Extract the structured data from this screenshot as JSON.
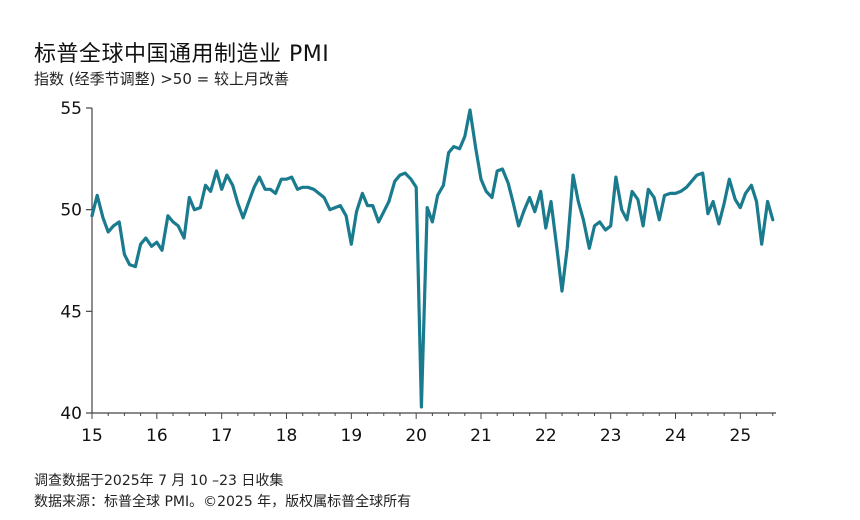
{
  "header": {
    "title": "标普全球中国通用制造业 PMI",
    "subtitle": "指数 (经季节调整) >50 = 较上月改善"
  },
  "footer": {
    "line1": "调查数据于2025年 7 月 10 –23 日收集",
    "line2": "数据来源：标普全球 PMI。©2025 年，版权属标普全球所有"
  },
  "colors": {
    "line": "#1a7a8e",
    "axis": "#444444"
  },
  "chart_data": {
    "type": "line",
    "title": "标普全球中国通用制造业 PMI",
    "subtitle": "指数 (经季节调整) >50 = 较上月改善",
    "xlabel": "",
    "ylabel": "",
    "ylim": [
      40,
      55
    ],
    "yticks": [
      40,
      45,
      50,
      55
    ],
    "xlim": [
      2015,
      2025.55
    ],
    "xticks": [
      2015,
      2016,
      2017,
      2018,
      2019,
      2020,
      2021,
      2022,
      2023,
      2024,
      2025
    ],
    "xtick_labels": [
      "15",
      "16",
      "17",
      "18",
      "19",
      "20",
      "21",
      "22",
      "23",
      "24",
      "25"
    ],
    "grid": false,
    "legend": "none",
    "series": [
      {
        "x": [
          2015.0,
          2015.08,
          2015.17,
          2015.25,
          2015.33,
          2015.42,
          2015.5,
          2015.58,
          2015.67,
          2015.75,
          2015.83,
          2015.92,
          2016.0,
          2016.08,
          2016.17,
          2016.25,
          2016.33,
          2016.42,
          2016.5,
          2016.58,
          2016.67,
          2016.75,
          2016.83,
          2016.92,
          2017.0,
          2017.08,
          2017.17,
          2017.25,
          2017.33,
          2017.42,
          2017.5,
          2017.58,
          2017.67,
          2017.75,
          2017.83,
          2017.92,
          2018.0,
          2018.08,
          2018.17,
          2018.25,
          2018.33,
          2018.42,
          2018.5,
          2018.58,
          2018.67,
          2018.75,
          2018.83,
          2018.92,
          2019.0,
          2019.08,
          2019.17,
          2019.25,
          2019.33,
          2019.42,
          2019.5,
          2019.58,
          2019.67,
          2019.75,
          2019.83,
          2019.92,
          2020.0,
          2020.08,
          2020.17,
          2020.25,
          2020.33,
          2020.42,
          2020.5,
          2020.58,
          2020.67,
          2020.75,
          2020.83,
          2020.92,
          2021.0,
          2021.08,
          2021.17,
          2021.25,
          2021.33,
          2021.42,
          2021.5,
          2021.58,
          2021.67,
          2021.75,
          2021.83,
          2021.92,
          2022.0,
          2022.08,
          2022.17,
          2022.25,
          2022.33,
          2022.42,
          2022.5,
          2022.58,
          2022.67,
          2022.75,
          2022.83,
          2022.92,
          2023.0,
          2023.08,
          2023.17,
          2023.25,
          2023.33,
          2023.42,
          2023.5,
          2023.58,
          2023.67,
          2023.75,
          2023.83,
          2023.92,
          2024.0,
          2024.08,
          2024.17,
          2024.25,
          2024.33,
          2024.42,
          2024.5,
          2024.58,
          2024.67,
          2024.75,
          2024.83,
          2024.92,
          2025.0,
          2025.08,
          2025.17,
          2025.25,
          2025.33,
          2025.42,
          2025.5
        ],
        "y": [
          49.7,
          50.7,
          49.6,
          48.9,
          49.2,
          49.4,
          47.8,
          47.3,
          47.2,
          48.3,
          48.6,
          48.2,
          48.4,
          48.0,
          49.7,
          49.4,
          49.2,
          48.6,
          50.6,
          50.0,
          50.1,
          51.2,
          50.9,
          51.9,
          51.0,
          51.7,
          51.2,
          50.3,
          49.6,
          50.4,
          51.1,
          51.6,
          51.0,
          51.0,
          50.8,
          51.5,
          51.5,
          51.6,
          51.0,
          51.1,
          51.1,
          51.0,
          50.8,
          50.6,
          50.0,
          50.1,
          50.2,
          49.7,
          48.3,
          49.9,
          50.8,
          50.2,
          50.2,
          49.4,
          49.9,
          50.4,
          51.4,
          51.7,
          51.8,
          51.5,
          51.1,
          40.3,
          50.1,
          49.4,
          50.7,
          51.2,
          52.8,
          53.1,
          53.0,
          53.6,
          54.9,
          53.0,
          51.5,
          50.9,
          50.6,
          51.9,
          52.0,
          51.3,
          50.3,
          49.2,
          50.0,
          50.6,
          49.9,
          50.9,
          49.1,
          50.4,
          48.1,
          46.0,
          48.1,
          51.7,
          50.4,
          49.5,
          48.1,
          49.2,
          49.4,
          49.0,
          49.2,
          51.6,
          50.0,
          49.5,
          50.9,
          50.5,
          49.2,
          51.0,
          50.6,
          49.5,
          50.7,
          50.8,
          50.8,
          50.9,
          51.1,
          51.4,
          51.7,
          51.8,
          49.8,
          50.4,
          49.3,
          50.3,
          51.5,
          50.5,
          50.1,
          50.8,
          51.2,
          50.4,
          48.3,
          50.4,
          49.5
        ]
      }
    ]
  }
}
